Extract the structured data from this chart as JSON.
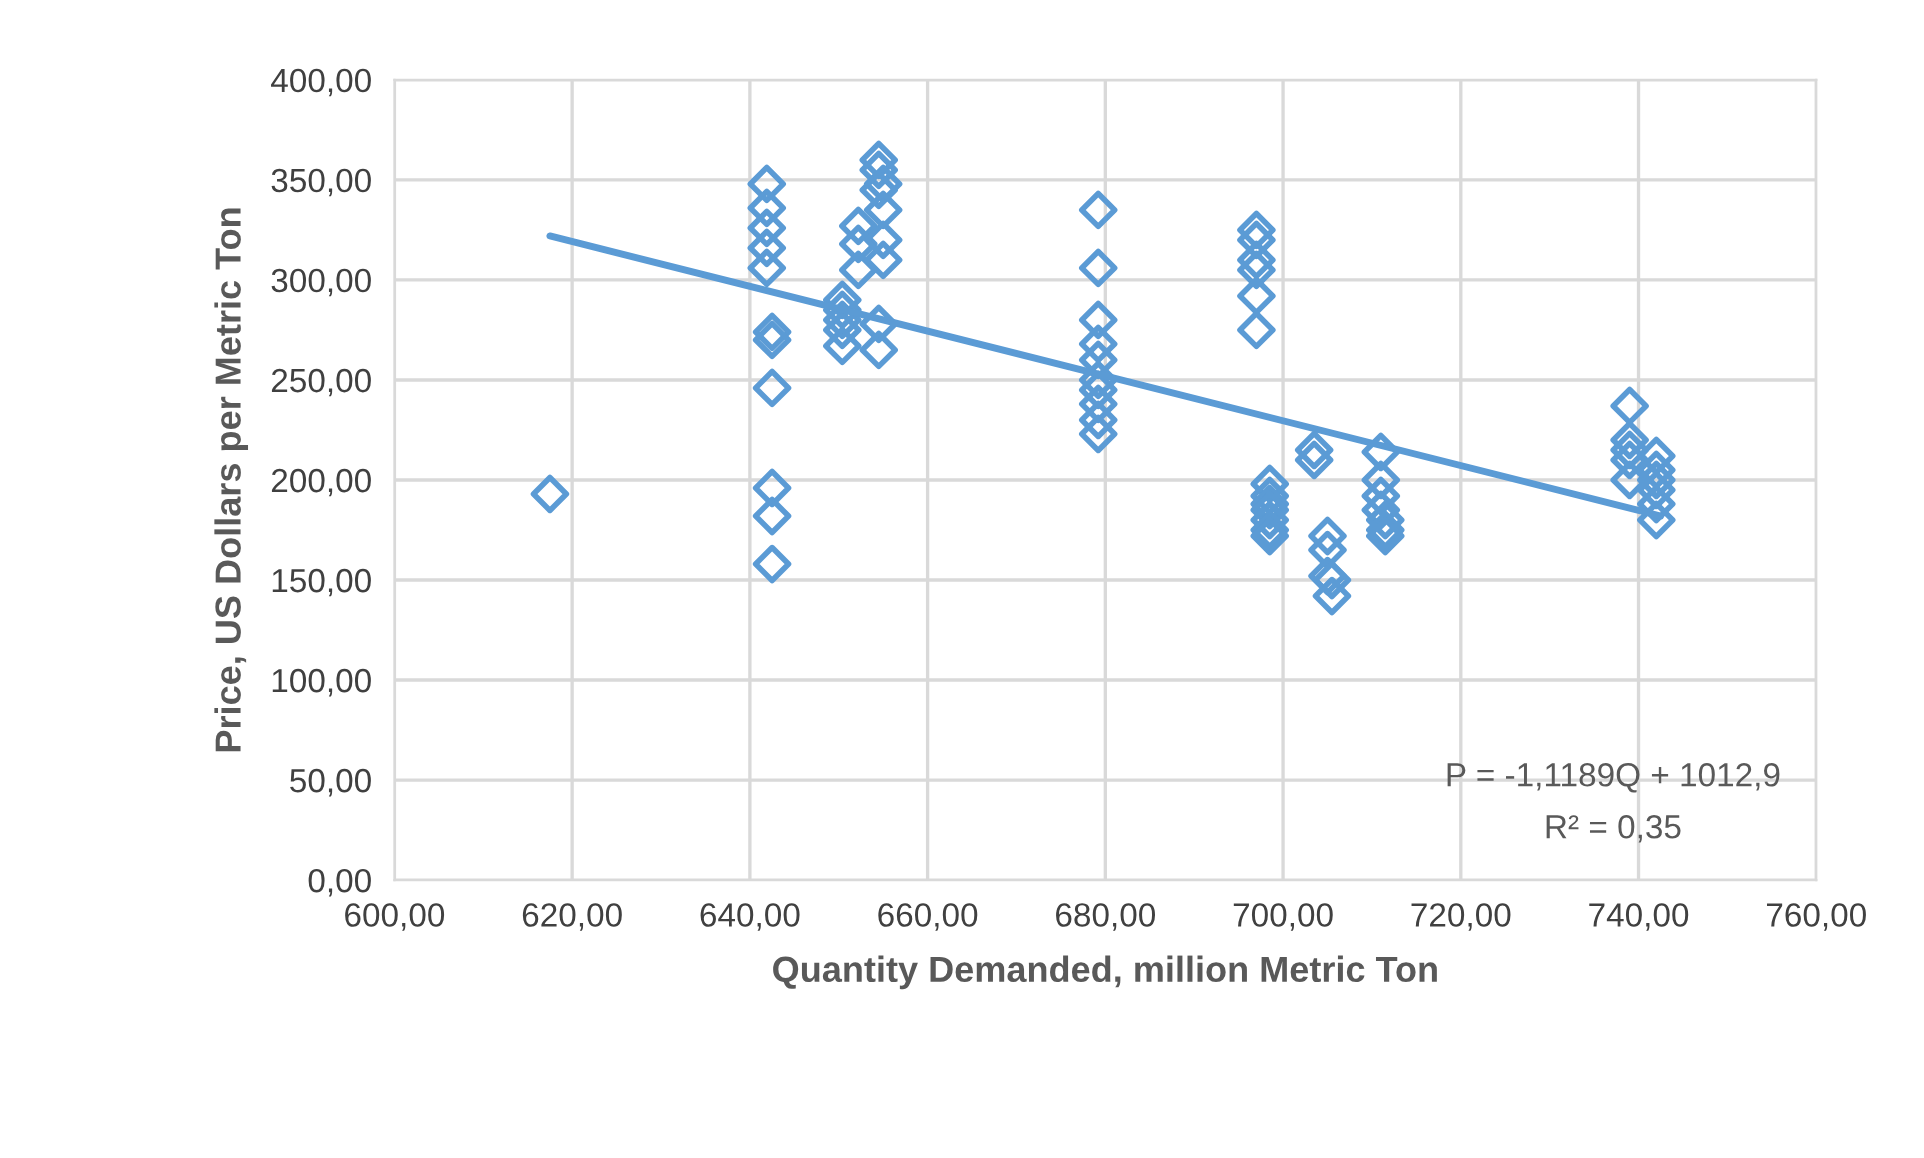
{
  "chart_data": {
    "type": "scatter",
    "xlabel": "Quantity Demanded, million Metric Ton",
    "ylabel": "Price, US Dollars per Metric Ton",
    "xlim": [
      600,
      760
    ],
    "ylim": [
      0,
      400
    ],
    "xticks": [
      {
        "value": 600,
        "label": "600,00"
      },
      {
        "value": 620,
        "label": "620,00"
      },
      {
        "value": 640,
        "label": "640,00"
      },
      {
        "value": 660,
        "label": "660,00"
      },
      {
        "value": 680,
        "label": "680,00"
      },
      {
        "value": 700,
        "label": "700,00"
      },
      {
        "value": 720,
        "label": "720,00"
      },
      {
        "value": 740,
        "label": "740,00"
      },
      {
        "value": 760,
        "label": "760,00"
      }
    ],
    "yticks": [
      {
        "value": 0,
        "label": "0,00"
      },
      {
        "value": 50,
        "label": "50,00"
      },
      {
        "value": 100,
        "label": "100,00"
      },
      {
        "value": 150,
        "label": "150,00"
      },
      {
        "value": 200,
        "label": "200,00"
      },
      {
        "value": 250,
        "label": "250,00"
      },
      {
        "value": 300,
        "label": "300,00"
      },
      {
        "value": 350,
        "label": "350,00"
      },
      {
        "value": 400,
        "label": "400,00"
      }
    ],
    "grid": true,
    "marker": "diamond",
    "series": [
      {
        "color": "#5b9bd5",
        "x": [
          617.5,
          641.9,
          641.9,
          641.9,
          641.9,
          641.9,
          642.5,
          642.5,
          642.5,
          642.5,
          642.5,
          642.5,
          650.4,
          650.4,
          650.4,
          650.4,
          650.4,
          652.2,
          652.2,
          652.2,
          654.5,
          654.5,
          655,
          654.5,
          655,
          655,
          655,
          654.5,
          654.5,
          679.2,
          679.2,
          679.2,
          679.2,
          679.2,
          679.2,
          679.2,
          679.2,
          679.2,
          679.2,
          697,
          697,
          697,
          697,
          697,
          697,
          698.5,
          698.5,
          698.5,
          698.5,
          698.5,
          698.5,
          698.5,
          703.5,
          703.5,
          705,
          705,
          705,
          705.5,
          705.5,
          711,
          711,
          711,
          711,
          711.5,
          711.5,
          711.5,
          739,
          739,
          739,
          739,
          739,
          742,
          742,
          742,
          742,
          742,
          742
        ],
        "values": [
          193,
          348,
          336,
          326,
          316,
          306,
          274,
          270,
          246,
          196,
          182,
          158,
          290,
          285,
          280,
          275,
          267,
          327,
          318,
          305,
          360,
          355,
          348,
          345,
          335,
          320,
          310,
          278,
          265,
          335,
          306,
          280,
          268,
          260,
          250,
          245,
          238,
          230,
          223,
          325,
          320,
          310,
          305,
          292,
          275,
          198,
          192,
          188,
          185,
          180,
          175,
          172,
          215,
          210,
          172,
          165,
          152,
          150,
          142,
          214,
          200,
          192,
          185,
          180,
          175,
          172,
          237,
          220,
          215,
          210,
          200,
          212,
          205,
          200,
          195,
          188,
          180
        ]
      },
      {
        "type": "line",
        "color": "#5b9bd5",
        "marker": "none",
        "x": [
          617.5,
          742.5
        ],
        "values": [
          322,
          182
        ]
      }
    ],
    "annotations": [
      {
        "text": "P = -1,1189Q + 1012,9"
      },
      {
        "text": "R² = 0,35"
      }
    ]
  }
}
